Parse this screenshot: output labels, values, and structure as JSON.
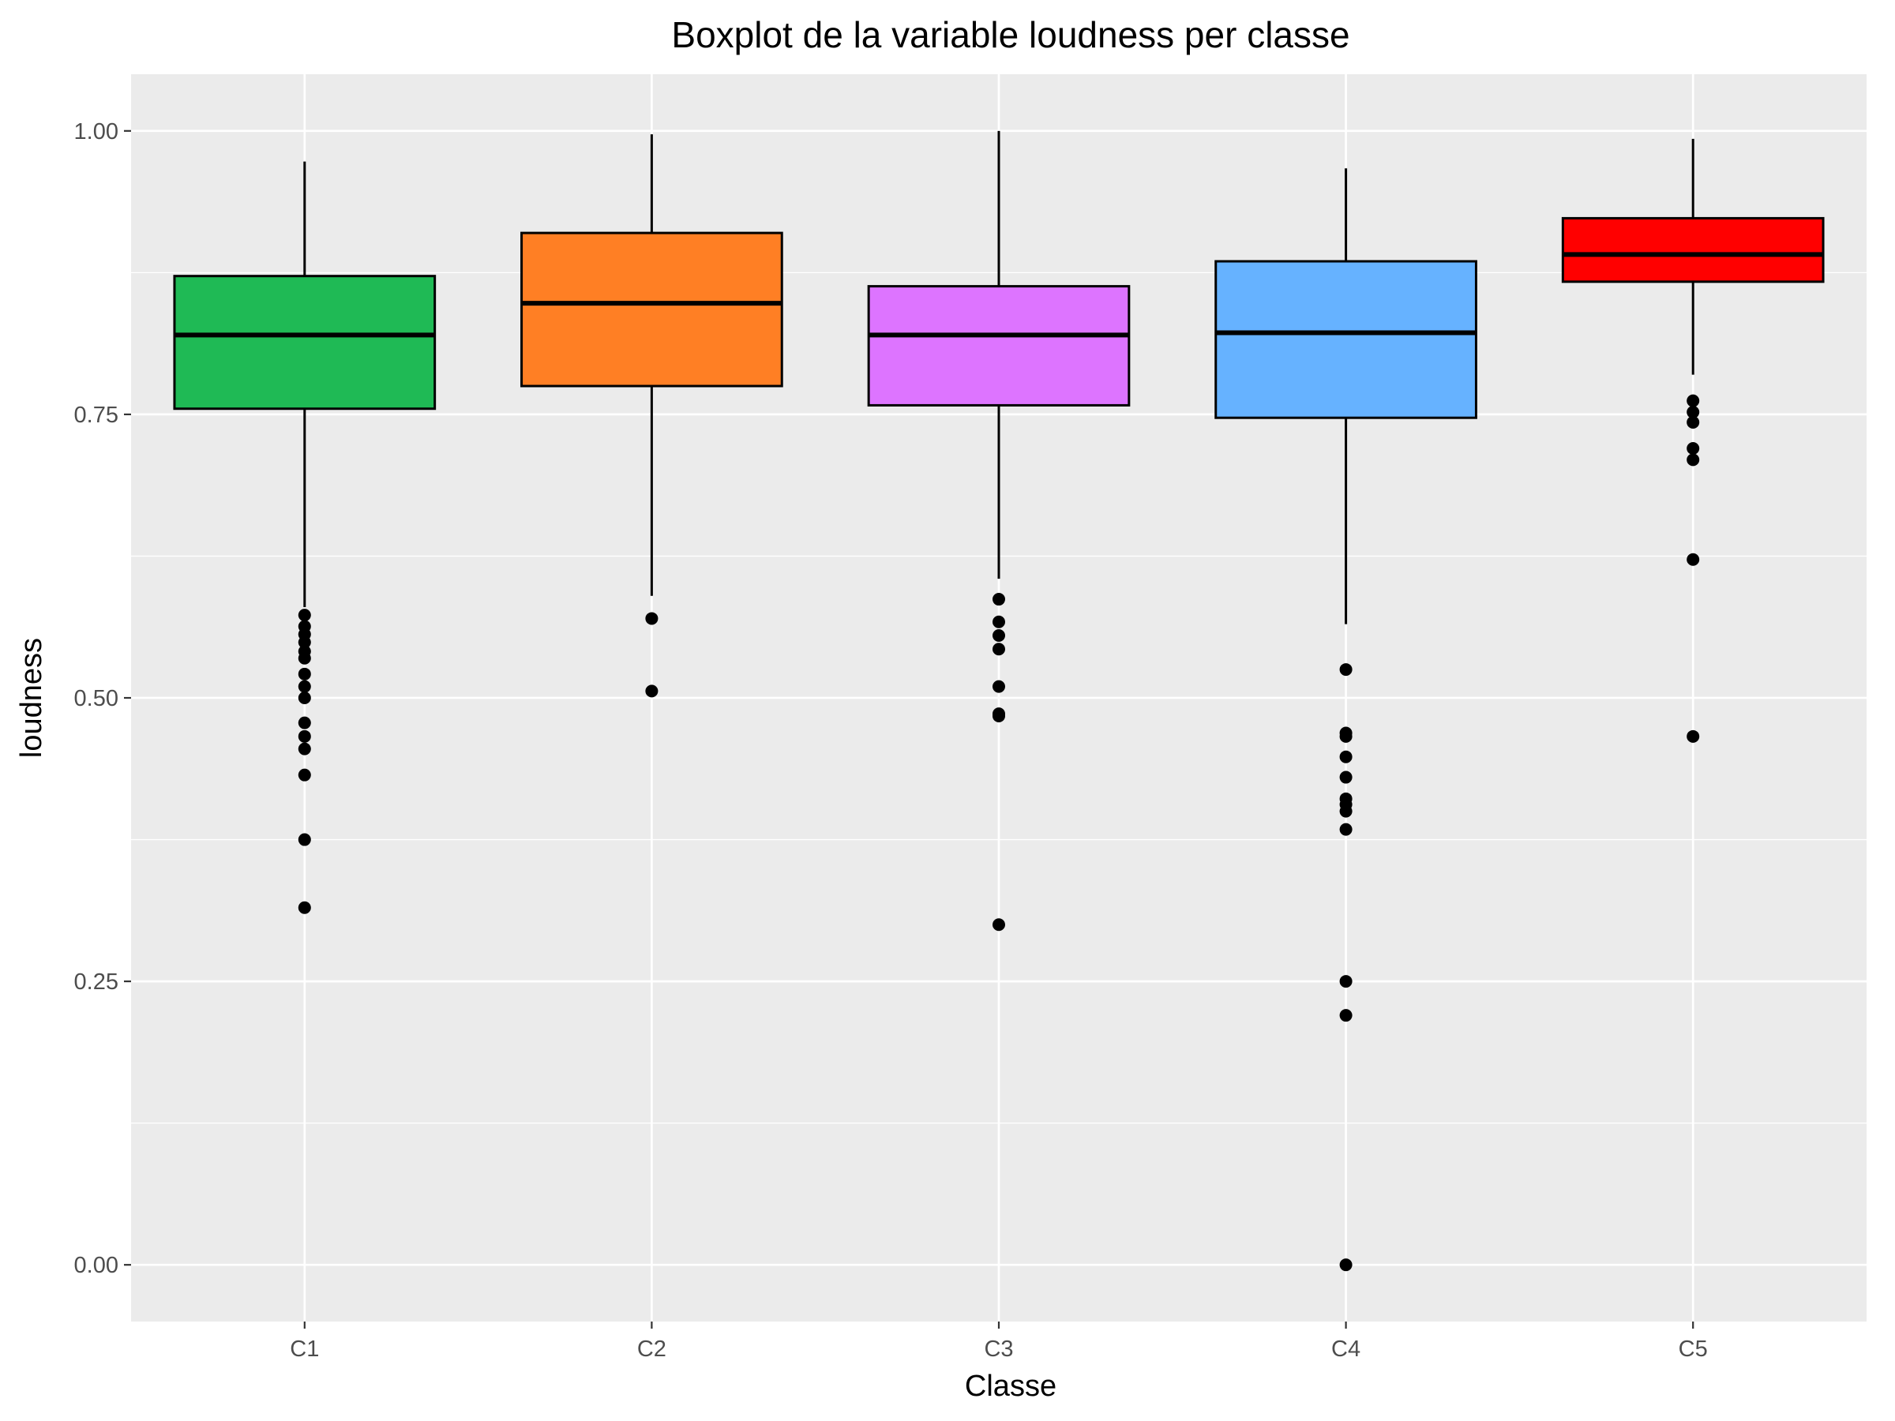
{
  "chart_data": {
    "type": "boxplot",
    "title": "Boxplot de la variable loudness per classe",
    "xlabel": "Classe",
    "ylabel": "loudness",
    "ylim": [
      -0.05,
      1.05
    ],
    "yticks": [
      0.0,
      0.25,
      0.5,
      0.75,
      1.0
    ],
    "ytick_labels": [
      "0.00",
      "0.25",
      "0.50",
      "0.75",
      "1.00"
    ],
    "grid": true,
    "legend": "none",
    "panel_background": "#ebebeb",
    "grid_color": "#ffffff",
    "categories": [
      "C1",
      "C2",
      "C3",
      "C4",
      "C5"
    ],
    "boxes": [
      {
        "category": "C1",
        "color": "#1fba55",
        "whisker_low": 0.58,
        "q1": 0.755,
        "median": 0.82,
        "q3": 0.872,
        "whisker_high": 0.973,
        "outliers": [
          0.573,
          0.563,
          0.556,
          0.549,
          0.541,
          0.535,
          0.521,
          0.51,
          0.5,
          0.478,
          0.466,
          0.455,
          0.432,
          0.375,
          0.315
        ]
      },
      {
        "category": "C2",
        "color": "#ff7f24",
        "whisker_low": 0.59,
        "q1": 0.775,
        "median": 0.848,
        "q3": 0.91,
        "whisker_high": 0.997,
        "outliers": [
          0.57,
          0.506
        ]
      },
      {
        "category": "C3",
        "color": "#dd74ff",
        "whisker_low": 0.605,
        "q1": 0.758,
        "median": 0.82,
        "q3": 0.863,
        "whisker_high": 1.0,
        "outliers": [
          0.587,
          0.567,
          0.555,
          0.543,
          0.51,
          0.486,
          0.484,
          0.3
        ]
      },
      {
        "category": "C4",
        "color": "#66b2ff",
        "whisker_low": 0.565,
        "q1": 0.747,
        "median": 0.822,
        "q3": 0.885,
        "whisker_high": 0.967,
        "outliers": [
          0.525,
          0.469,
          0.466,
          0.448,
          0.43,
          0.411,
          0.406,
          0.4,
          0.384,
          0.25,
          0.22,
          0.0
        ]
      },
      {
        "category": "C5",
        "color": "#ff0000",
        "whisker_low": 0.785,
        "q1": 0.867,
        "median": 0.891,
        "q3": 0.923,
        "whisker_high": 0.993,
        "outliers": [
          0.762,
          0.752,
          0.743,
          0.72,
          0.71,
          0.622,
          0.466
        ]
      }
    ]
  }
}
